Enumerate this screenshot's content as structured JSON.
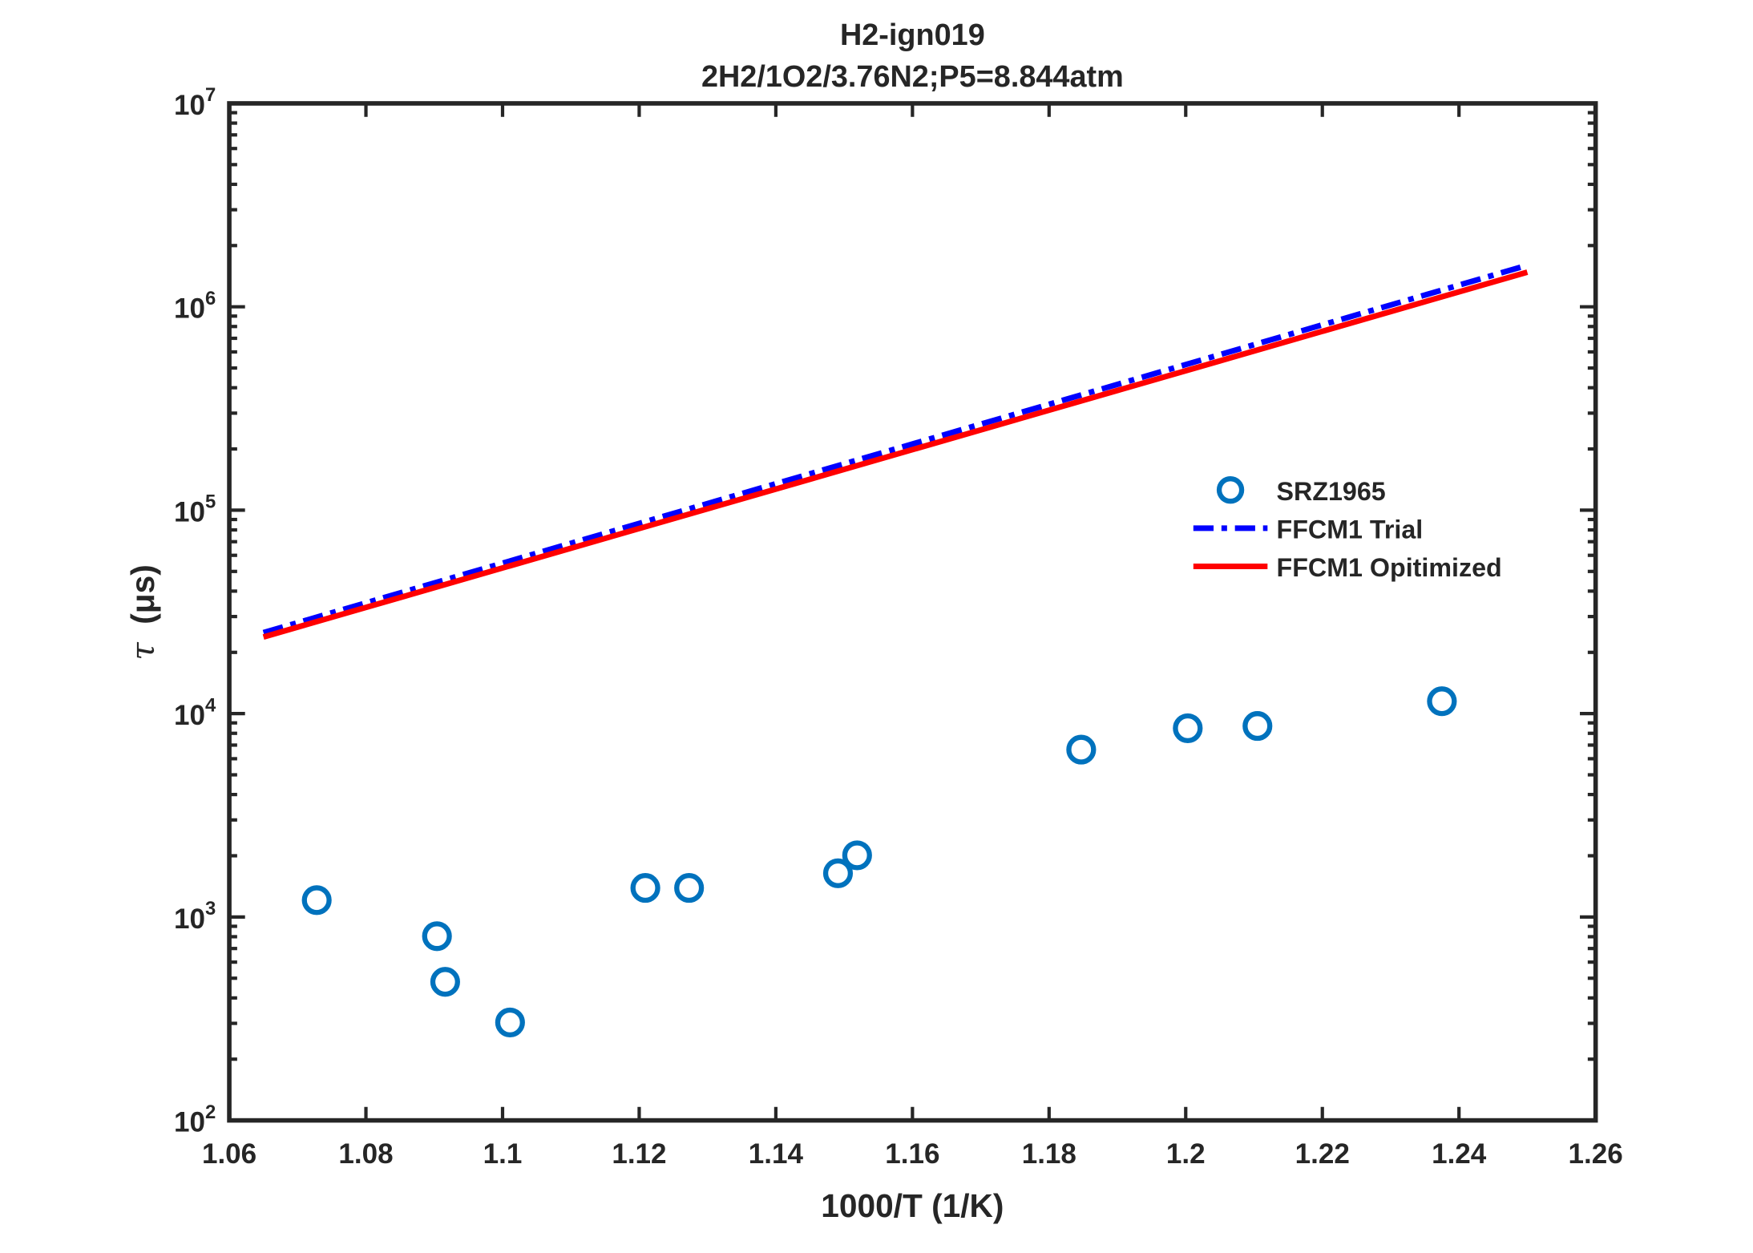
{
  "chart_data": {
    "type": "scatter",
    "title": "H2-ign019",
    "subtitle": "2H2/1O2/3.76N2;P5=8.844atm",
    "xlabel": "1000/T (1/K)",
    "ylabel_symbol": "τ",
    "ylabel_unit": "(μs)",
    "xlim": [
      1.06,
      1.26
    ],
    "ylim": [
      100,
      10000000
    ],
    "yscale": "log",
    "xticks": [
      "1.06",
      "1.08",
      "1.1",
      "1.12",
      "1.14",
      "1.16",
      "1.18",
      "1.2",
      "1.22",
      "1.24",
      "1.26"
    ],
    "xtick_values": [
      1.06,
      1.08,
      1.1,
      1.12,
      1.14,
      1.16,
      1.18,
      1.2,
      1.22,
      1.24,
      1.26
    ],
    "yticks_exp": [
      "2",
      "3",
      "4",
      "5",
      "6",
      "7"
    ],
    "ytick_base": "10",
    "grid": false,
    "legend_position": "right",
    "series": [
      {
        "name": "SRZ1965",
        "style": "markers-circle",
        "color": "#0072BD",
        "x": [
          1.0728,
          1.0904,
          1.0916,
          1.1011,
          1.1209,
          1.1273,
          1.1491,
          1.1519,
          1.1847,
          1.2003,
          1.2105,
          1.2375
        ],
        "y": [
          1210,
          805,
          480,
          303,
          1390,
          1390,
          1640,
          2010,
          6650,
          8470,
          8690,
          11500
        ]
      },
      {
        "name": "FFCM1 Trial",
        "style": "dashdot",
        "color": "#0000FF",
        "x": [
          1.065,
          1.25
        ],
        "y": [
          25000,
          1600000
        ]
      },
      {
        "name": "FFCM1 Opitimized",
        "style": "solid",
        "color": "#FF0000",
        "x": [
          1.065,
          1.25
        ],
        "y": [
          23800,
          1480000
        ]
      }
    ]
  }
}
